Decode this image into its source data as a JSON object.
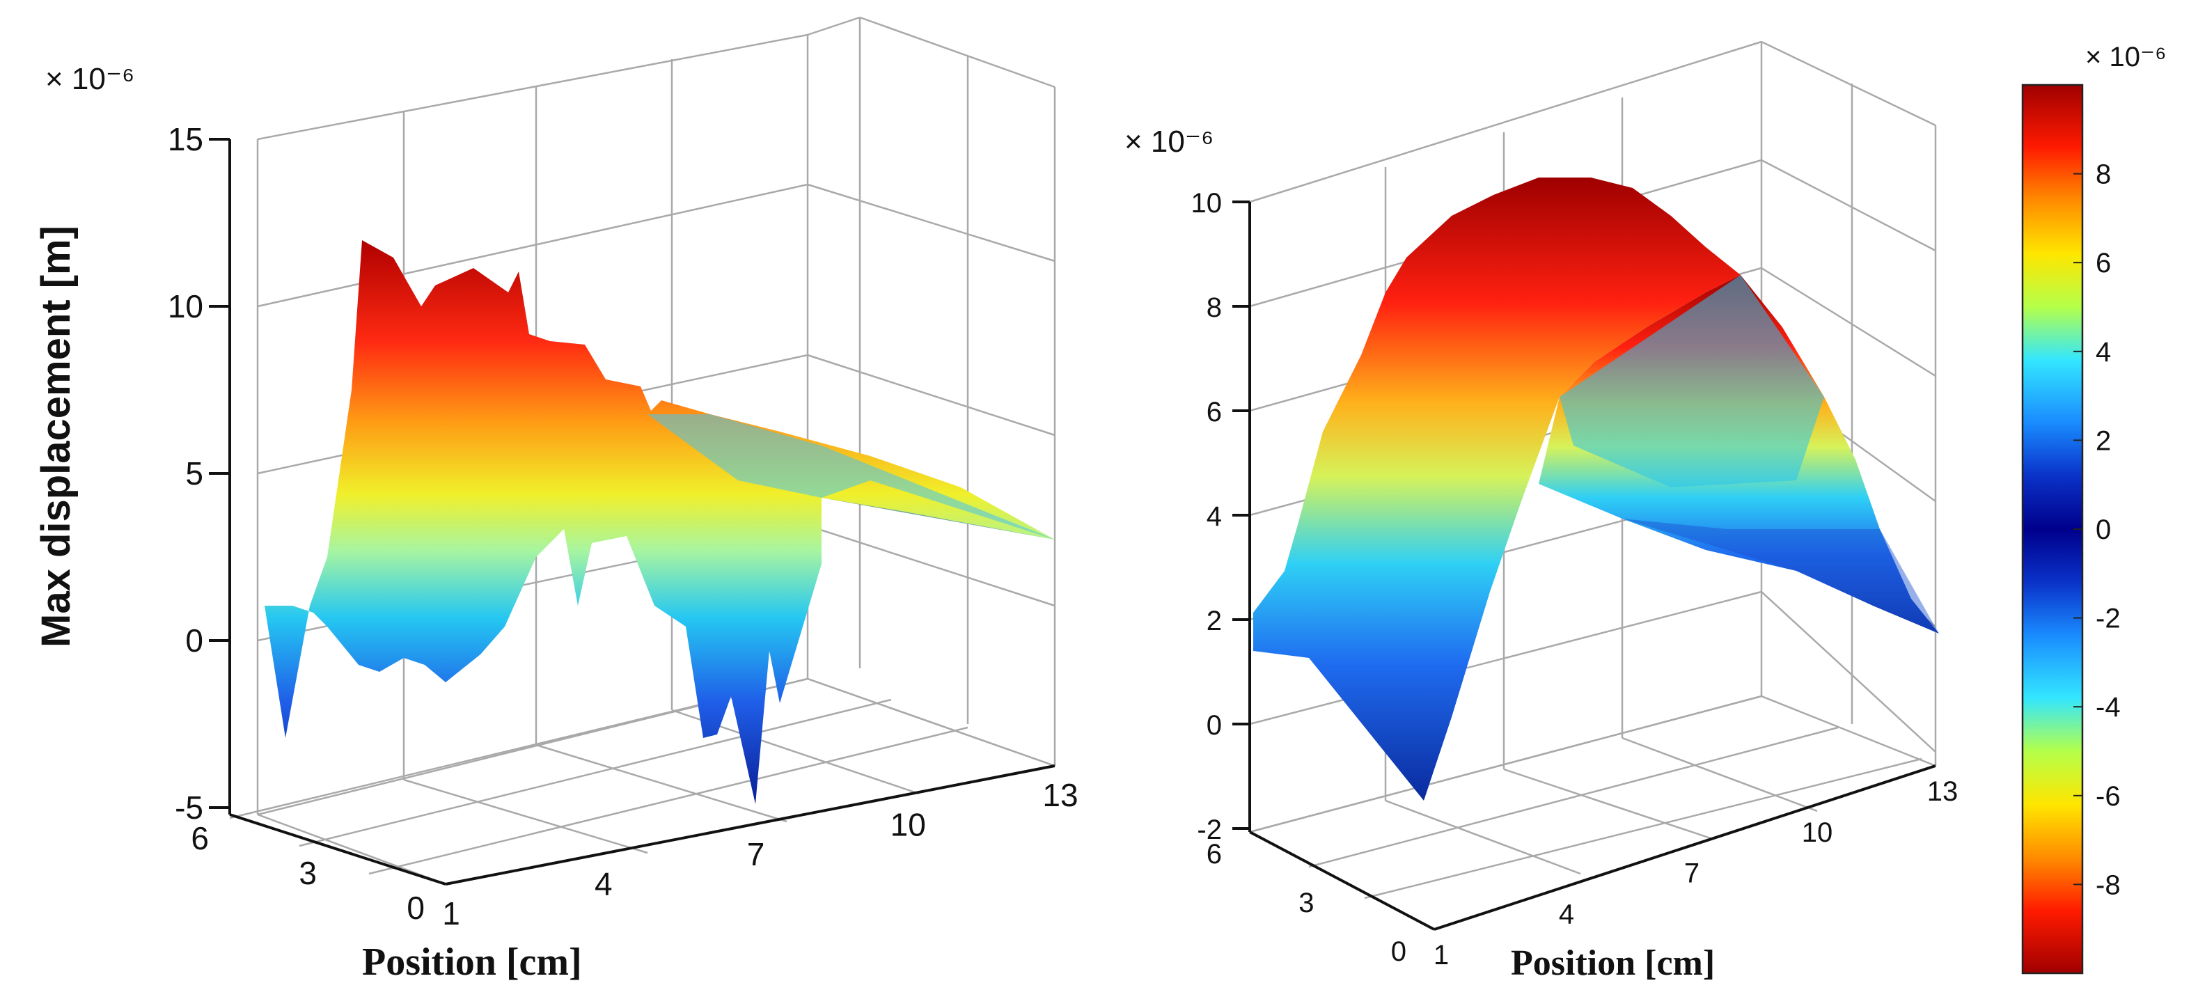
{
  "chart_data": [
    {
      "type": "surface3d",
      "xlabel": "Position [cm]",
      "ylabel": "",
      "zlabel": "Max displacement [m]",
      "z_exponent": "× 10⁻⁶",
      "xlim": [
        1,
        13
      ],
      "ylim": [
        0,
        6
      ],
      "zlim": [
        -5,
        15
      ],
      "x_ticks": [
        "1",
        "4",
        "7",
        "10",
        "13"
      ],
      "y_ticks": [
        "0",
        "3",
        "6"
      ],
      "z_ticks": [
        "-5",
        "0",
        "5",
        "10",
        "15"
      ],
      "surface": {
        "x": [
          1,
          2,
          3,
          4,
          5,
          6,
          7,
          8,
          9,
          10,
          11,
          12,
          13
        ],
        "ridge_z_y0": [
          1.0,
          10.5,
          9.8,
          8.5,
          6.0,
          3.0,
          1.5,
          1.0,
          0.5,
          0.3,
          0.2,
          0.1,
          0.0
        ],
        "ridge_z_y6": [
          1.0,
          1.2,
          1.5,
          2.5,
          4.0,
          5.2,
          5.5,
          5.2,
          4.8,
          4.4,
          4.0,
          3.5,
          3.0
        ],
        "min_z": [
          -3,
          -1,
          -1.5,
          -2,
          -1,
          -4,
          -5,
          -3,
          -2,
          -1,
          0,
          1,
          2
        ]
      }
    },
    {
      "type": "surface3d",
      "xlabel": "Position [cm]",
      "ylabel": "",
      "zlabel": "",
      "z_exponent": "× 10⁻⁶",
      "xlim": [
        1,
        13
      ],
      "ylim": [
        0,
        6
      ],
      "zlim": [
        -2,
        10
      ],
      "x_ticks": [
        "1",
        "4",
        "7",
        "10",
        "13"
      ],
      "y_ticks": [
        "0",
        "3",
        "6"
      ],
      "z_ticks": [
        "-2",
        "0",
        "2",
        "4",
        "6",
        "8",
        "10"
      ],
      "surface": {
        "x": [
          1,
          2,
          3,
          4,
          5,
          6,
          7,
          8,
          9,
          10,
          11,
          12,
          13
        ],
        "profile_z": [
          1.5,
          4.0,
          6.5,
          8.5,
          9.8,
          10.0,
          9.5,
          8.5,
          7.0,
          5.2,
          3.5,
          2.0,
          0.0
        ],
        "edge_z_y0": [
          1.5,
          0.0,
          -1.5,
          0.5,
          3.0,
          5.0,
          5.5,
          5.0,
          4.5,
          3.8,
          3.0,
          2.0,
          1.0
        ]
      }
    }
  ],
  "colorbar": {
    "exponent": "× 10⁻⁶",
    "min": -10,
    "max": 10,
    "ticks": [
      "8",
      "6",
      "4",
      "2",
      "0",
      "-2",
      "-4",
      "-6",
      "-8"
    ],
    "colors": [
      "#a00000",
      "#ff1a00",
      "#ff8c00",
      "#ffe600",
      "#b4ff4a",
      "#33e6ff",
      "#1a8cff",
      "#0a32c8",
      "#00008c",
      "#0a32c8",
      "#1a8cff",
      "#33e6ff",
      "#b4ff4a",
      "#ffe600",
      "#ff8c00",
      "#ff1a00",
      "#a00000"
    ]
  }
}
